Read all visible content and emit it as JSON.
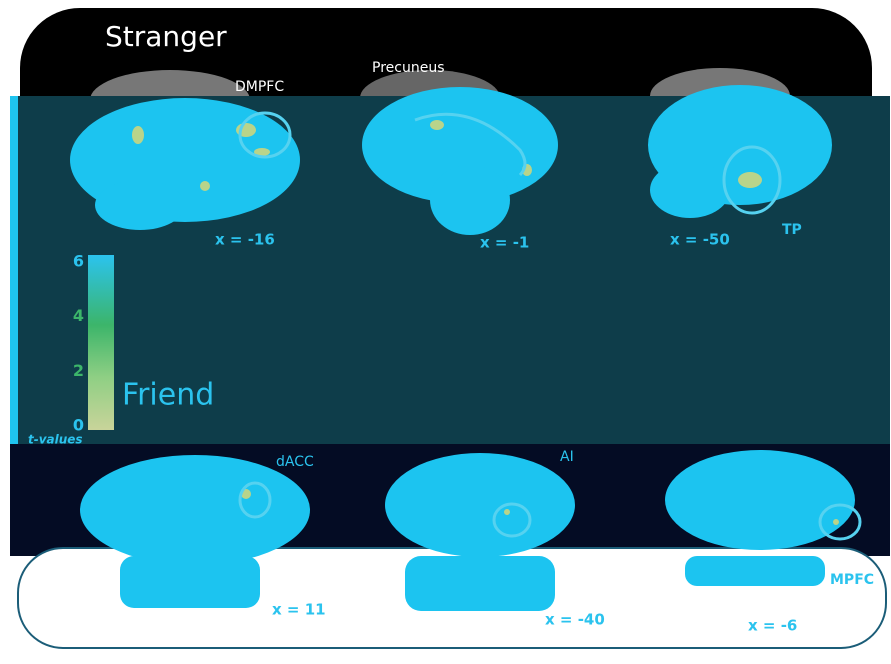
{
  "stranger": {
    "title": "Stranger",
    "regions": [
      "DMPFC",
      "Precuneus",
      "TP"
    ],
    "slices": [
      "x = -16",
      "x = -1",
      "x = -50"
    ]
  },
  "friend": {
    "title": "Friend",
    "regions": [
      "dACC",
      "AI",
      "MPFC"
    ],
    "slices": [
      "x = 11",
      "x = -40",
      "x = -6"
    ]
  },
  "colorbar": {
    "label": "t-values",
    "range": [
      0,
      6
    ],
    "ticks": [
      0,
      2,
      4,
      6
    ]
  }
}
